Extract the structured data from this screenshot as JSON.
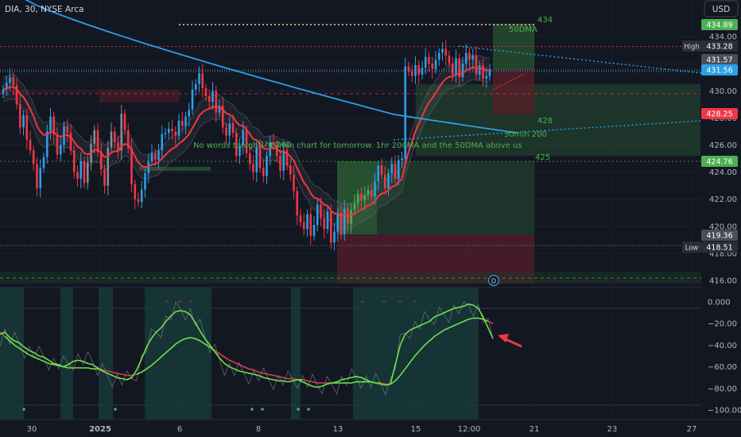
{
  "header": {
    "symbol_line": "DIA, 30, NYSE Arca",
    "currency": "USD"
  },
  "colors": {
    "bg": "#131722",
    "up": "#2e9ee6",
    "down": "#f23645",
    "gray": "#888c96",
    "ema": "#f23645",
    "sma200": "#2ba0e6",
    "zone_green": "#2f6a36",
    "zone_red": "#5a1e2a",
    "osc_green": "#6ee04a",
    "osc_red": "#d2414f",
    "annotation": "#4caf50"
  },
  "chart_data": [
    {
      "type": "candlestick",
      "title": "DIA, 30, NYSE Arca",
      "y_axis": {
        "ticks": [
          416,
          418,
          420,
          422,
          424,
          426,
          428,
          430,
          432,
          434
        ],
        "range": [
          415.4,
          436.4
        ],
        "position": "right"
      },
      "x_axis": {
        "ticks": [
          "30",
          "2025",
          "6",
          "8",
          "13",
          "15",
          "12:00",
          "21",
          "23",
          "27"
        ]
      },
      "price_badges": [
        {
          "value": "434.89",
          "color": "#4caf50"
        },
        {
          "value": "433.28",
          "label": "High",
          "color": "#2a2e39"
        },
        {
          "value": "431.57",
          "color": "#4a4e59"
        },
        {
          "value": "431.56",
          "color": "#2ba0e6"
        },
        {
          "value": "428.25",
          "color": "#f23645"
        },
        {
          "value": "424.76",
          "color": "#4caf50"
        },
        {
          "value": "419.36",
          "color": "#4a4e59"
        },
        {
          "value": "418.51",
          "label": "Low",
          "color": "#2a2e39"
        }
      ],
      "levels": [
        {
          "label": "434",
          "value": 434.5
        },
        {
          "label": "428",
          "value": 428.1
        },
        {
          "label": "425",
          "value": 425.3
        }
      ],
      "annotations": {
        "note": "No words tonight - 10min chart for tomorrow.  1hr 200MA and the 50DMA above us",
        "ma50": "50DMA",
        "ma200_30m": "30min 200",
        "ma200_hr": "1hr 200",
        "dividend_marker": "D"
      },
      "series_close": [
        430.1,
        430.6,
        431.0,
        430.4,
        429.0,
        427.3,
        428.2,
        426.4,
        425.6,
        424.6,
        422.8,
        424.3,
        425.1,
        427.0,
        428.1,
        426.8,
        425.3,
        426.0,
        427.4,
        426.9,
        425.6,
        424.0,
        423.5,
        424.8,
        423.2,
        424.7,
        426.1,
        427.1,
        425.5,
        424.2,
        423.0,
        425.8,
        427.0,
        426.2,
        425.6,
        428.3,
        427.1,
        425.8,
        423.1,
        422.0,
        421.8,
        422.7,
        423.9,
        424.8,
        425.4,
        424.9,
        425.6,
        426.8,
        426.9,
        427.2,
        427.0,
        426.7,
        427.8,
        427.4,
        428.1,
        428.6,
        430.1,
        430.5,
        431.3,
        430.2,
        429.6,
        429.2,
        430.0,
        428.4,
        428.9,
        427.3,
        426.7,
        427.6,
        426.9,
        425.2,
        426.0,
        427.1,
        425.4,
        424.6,
        424.0,
        425.9,
        424.3,
        423.7,
        425.2,
        426.2,
        426.0,
        425.2,
        424.1,
        425.6,
        424.5,
        423.8,
        422.6,
        420.8,
        420.3,
        419.8,
        420.9,
        419.3,
        420.1,
        421.6,
        420.6,
        419.8,
        421.1,
        418.8,
        419.6,
        421.0,
        419.4,
        421.3,
        420.2,
        421.2,
        421.7,
        422.4,
        421.9,
        422.3,
        422.7,
        422.2,
        423.3,
        424.5,
        423.8,
        422.8,
        423.9,
        424.6,
        423.5,
        424.9,
        425.0,
        431.8,
        431.4,
        431.1,
        431.9,
        431.2,
        431.7,
        432.5,
        432.0,
        431.6,
        432.3,
        432.8,
        433.1,
        432.6,
        432.0,
        431.2,
        432.4,
        431.0,
        432.0,
        432.8,
        432.3,
        432.6,
        431.2,
        431.9,
        430.9,
        431.1,
        431.6
      ],
      "oscillator": {
        "y_ticks": [
          "0.000",
          "−20.00",
          "−40.00",
          "−60.00",
          "−80.00",
          "−100.00"
        ],
        "range": [
          -108,
          2
        ],
        "fast_line": [
          -30,
          -28,
          -33,
          -36,
          -38,
          -42,
          -45,
          -47,
          -50,
          -51,
          -54,
          -57,
          -58,
          -60,
          -58,
          -55,
          -54,
          -55,
          -57,
          -58,
          -61,
          -64,
          -66,
          -68,
          -70,
          -71,
          -72,
          -70,
          -63,
          -53,
          -42,
          -34,
          -28,
          -24,
          -18,
          -13,
          -9,
          -8,
          -9,
          -12,
          -19,
          -27,
          -34,
          -40,
          -46,
          -52,
          -57,
          -60,
          -62,
          -64,
          -65,
          -66,
          -67,
          -68,
          -70,
          -71,
          -72,
          -73,
          -73,
          -74,
          -73,
          -72,
          -74,
          -76,
          -78,
          -79,
          -78,
          -76,
          -75,
          -74,
          -72,
          -71,
          -70,
          -69,
          -70,
          -72,
          -74,
          -75,
          -76,
          -77,
          -76,
          -58,
          -40,
          -30,
          -26,
          -24,
          -22,
          -20,
          -18,
          -14,
          -12,
          -10,
          -8,
          -6,
          -5,
          -4,
          -2,
          -3,
          -6,
          -14,
          -24,
          -34
        ],
        "slow_line": [
          -28,
          -32,
          -36,
          -40,
          -43,
          -46,
          -49,
          -51,
          -53,
          -55,
          -57,
          -58,
          -59,
          -60,
          -61,
          -61,
          -61,
          -61,
          -61,
          -62,
          -62,
          -63,
          -64,
          -65,
          -66,
          -67,
          -68,
          -68,
          -67,
          -65,
          -62,
          -59,
          -55,
          -51,
          -47,
          -43,
          -39,
          -36,
          -34,
          -33,
          -34,
          -36,
          -39,
          -42,
          -45,
          -48,
          -51,
          -54,
          -56,
          -58,
          -60,
          -62,
          -63,
          -65,
          -66,
          -67,
          -68,
          -69,
          -70,
          -71,
          -71,
          -72,
          -72,
          -73,
          -74,
          -75,
          -75,
          -75,
          -75,
          -75,
          -75,
          -75,
          -75,
          -74,
          -74,
          -74,
          -74,
          -75,
          -75,
          -76,
          -76,
          -73,
          -68,
          -62,
          -56,
          -50,
          -45,
          -40,
          -36,
          -32,
          -29,
          -26,
          -24,
          -22,
          -20,
          -18,
          -16,
          -15,
          -15,
          -16,
          -18,
          -20
        ]
      }
    }
  ]
}
